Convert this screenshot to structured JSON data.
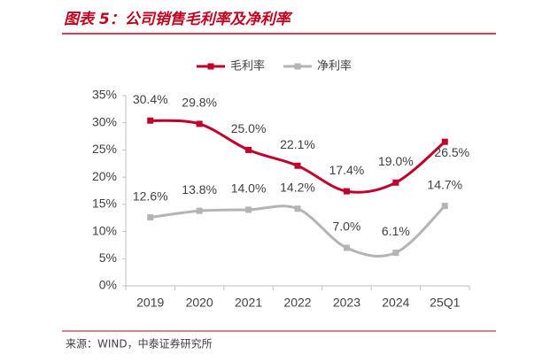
{
  "chart_data": {
    "type": "line",
    "title": "图表 5：公司销售毛利率及净利率",
    "source": "来源：WIND，中泰证券研究所",
    "categories": [
      "2019",
      "2020",
      "2021",
      "2022",
      "2023",
      "2024",
      "25Q1"
    ],
    "series": [
      {
        "name": "毛利率",
        "color": "#c0002a",
        "values": [
          30.4,
          29.8,
          25.0,
          22.1,
          17.4,
          19.0,
          26.5
        ],
        "value_labels": [
          "30.4%",
          "29.8%",
          "25.0%",
          "22.1%",
          "17.4%",
          "19.0%",
          "26.5%"
        ]
      },
      {
        "name": "净利率",
        "color": "#b4b4b4",
        "values": [
          12.6,
          13.8,
          14.0,
          14.2,
          7.0,
          6.1,
          14.7
        ],
        "value_labels": [
          "12.6%",
          "13.8%",
          "14.0%",
          "14.2%",
          "7.0%",
          "6.1%",
          "14.7%"
        ]
      }
    ],
    "ylim": [
      0,
      35
    ],
    "yticks": [
      {
        "value": 0,
        "label": "0%"
      },
      {
        "value": 5,
        "label": "5%"
      },
      {
        "value": 10,
        "label": "10%"
      },
      {
        "value": 15,
        "label": "15%"
      },
      {
        "value": 20,
        "label": "20%"
      },
      {
        "value": 25,
        "label": "25%"
      },
      {
        "value": 30,
        "label": "30%"
      },
      {
        "value": 35,
        "label": "35%"
      }
    ],
    "legend": "top"
  }
}
